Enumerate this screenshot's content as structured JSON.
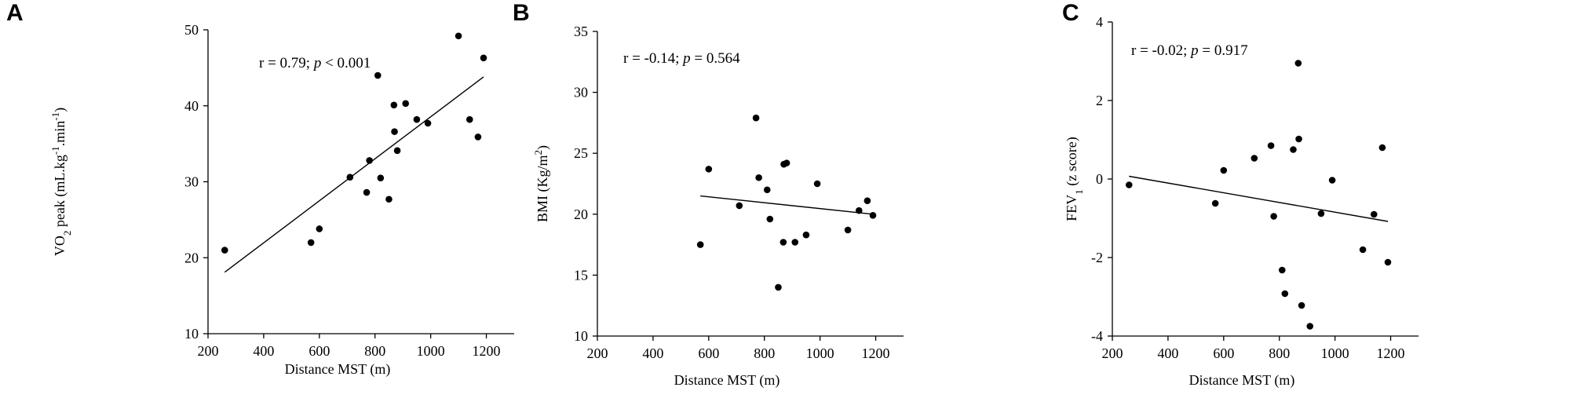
{
  "chart_data": [
    {
      "panel": "A",
      "type": "scatter",
      "xlabel": "Distance  MST  (m)",
      "ylabel_parts": [
        "VO",
        "2",
        " peak  (mL.kg",
        "-1",
        ".min",
        "-1",
        ")"
      ],
      "xlim": [
        200,
        1300
      ],
      "ylim": [
        10,
        50
      ],
      "xticks": [
        200,
        400,
        600,
        800,
        1000,
        1200
      ],
      "yticks": [
        10,
        20,
        30,
        40,
        50
      ],
      "annotation": {
        "prefix": "r = 0.79; ",
        "p_symbol": "p",
        "suffix": " < 0.001"
      },
      "points": [
        [
          260,
          21.0
        ],
        [
          570,
          22.0
        ],
        [
          600,
          23.8
        ],
        [
          710,
          30.6
        ],
        [
          770,
          28.6
        ],
        [
          780,
          32.8
        ],
        [
          810,
          44.0
        ],
        [
          820,
          30.5
        ],
        [
          850,
          27.7
        ],
        [
          868,
          40.1
        ],
        [
          870,
          36.6
        ],
        [
          880,
          34.1
        ],
        [
          910,
          40.3
        ],
        [
          950,
          38.2
        ],
        [
          990,
          37.7
        ],
        [
          1100,
          49.2
        ],
        [
          1140,
          38.2
        ],
        [
          1170,
          35.9
        ],
        [
          1190,
          46.3
        ]
      ],
      "fit": {
        "x": [
          260,
          1190
        ],
        "y": [
          18.1,
          43.8
        ]
      }
    },
    {
      "panel": "B",
      "type": "scatter",
      "xlabel": "Distance  MST  (m)",
      "ylabel_parts": [
        "BMI  (Kg/m",
        "2",
        ")"
      ],
      "xlim": [
        200,
        1300
      ],
      "ylim": [
        10,
        35
      ],
      "xticks": [
        200,
        400,
        600,
        800,
        1000,
        1200
      ],
      "yticks": [
        10,
        15,
        20,
        25,
        30,
        35
      ],
      "annotation": {
        "prefix": "r = -0.14; ",
        "p_symbol": "p",
        "suffix": " = 0.564"
      },
      "points": [
        [
          570,
          17.5
        ],
        [
          600,
          23.7
        ],
        [
          710,
          20.7
        ],
        [
          770,
          27.9
        ],
        [
          780,
          23.0
        ],
        [
          810,
          22.0
        ],
        [
          820,
          19.6
        ],
        [
          850,
          14.0
        ],
        [
          868,
          17.7
        ],
        [
          870,
          24.1
        ],
        [
          880,
          24.2
        ],
        [
          910,
          17.7
        ],
        [
          950,
          18.3
        ],
        [
          990,
          22.5
        ],
        [
          1100,
          18.7
        ],
        [
          1140,
          20.3
        ],
        [
          1170,
          21.1
        ],
        [
          1190,
          19.9
        ]
      ],
      "fit": {
        "x": [
          570,
          1190
        ],
        "y": [
          21.5,
          20.0
        ]
      }
    },
    {
      "panel": "C",
      "type": "scatter",
      "xlabel": "Distance  MST  (m)",
      "ylabel_parts": [
        "FEV",
        "1",
        "  (z score)"
      ],
      "xlim": [
        200,
        1300
      ],
      "ylim": [
        -4,
        4
      ],
      "xticks": [
        200,
        400,
        600,
        800,
        1000,
        1200
      ],
      "yticks": [
        -4,
        -2,
        0,
        2,
        4
      ],
      "annotation": {
        "prefix": "r = -0.02; ",
        "p_symbol": "p",
        "suffix": " = 0.917"
      },
      "points": [
        [
          260,
          -0.15
        ],
        [
          570,
          -0.62
        ],
        [
          600,
          0.22
        ],
        [
          710,
          0.53
        ],
        [
          770,
          0.85
        ],
        [
          780,
          -0.95
        ],
        [
          810,
          -2.32
        ],
        [
          820,
          -2.92
        ],
        [
          850,
          0.75
        ],
        [
          868,
          2.95
        ],
        [
          870,
          1.02
        ],
        [
          880,
          -3.22
        ],
        [
          910,
          -3.75
        ],
        [
          950,
          -0.88
        ],
        [
          990,
          -0.03
        ],
        [
          1100,
          -1.8
        ],
        [
          1140,
          -0.9
        ],
        [
          1170,
          0.8
        ],
        [
          1190,
          -2.12
        ]
      ],
      "fit": {
        "x": [
          260,
          1190
        ],
        "y": [
          0.07,
          -1.08
        ]
      }
    }
  ]
}
